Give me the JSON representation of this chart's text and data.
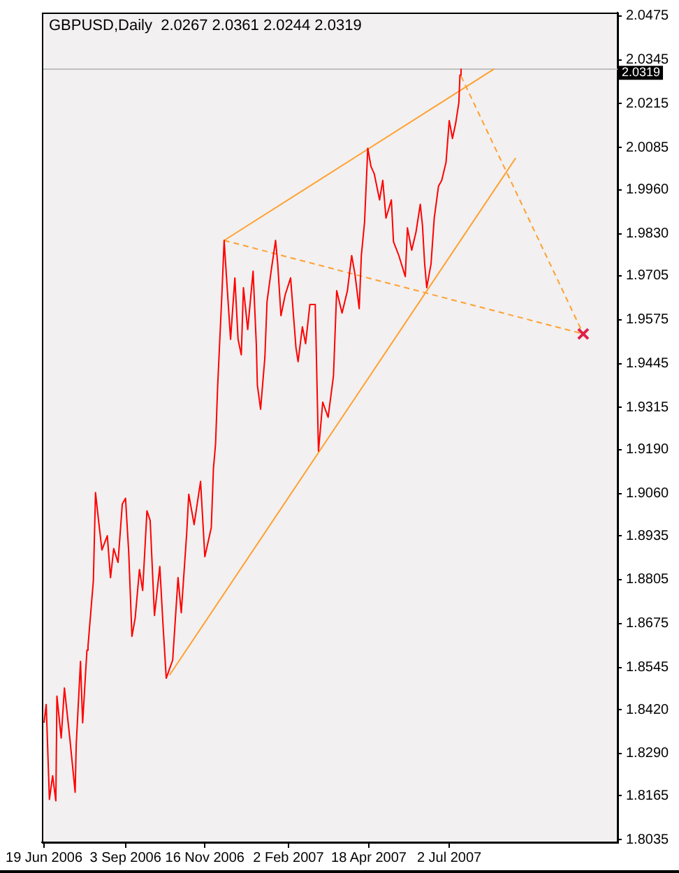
{
  "chart_data": {
    "type": "line",
    "title": "GBPUSD,Daily  2.0267 2.0361 2.0244 2.0319",
    "xlim": [
      "2006-06-17",
      "2007-12-06"
    ],
    "xticks": [
      {
        "value": "2006-06-19",
        "label": "19 Jun 2006"
      },
      {
        "value": "2006-09-03",
        "label": "3 Sep 2006"
      },
      {
        "value": "2006-11-16",
        "label": "16 Nov 2006"
      },
      {
        "value": "2007-02-02",
        "label": "2 Feb 2007"
      },
      {
        "value": "2007-04-18",
        "label": "18 Apr 2007"
      },
      {
        "value": "2007-07-02",
        "label": "2 Jul 2007"
      }
    ],
    "ylim": [
      1.8027,
      2.0485
    ],
    "yticks": [
      1.8035,
      1.8165,
      {
        "value": 1.829,
        "label": "1.8290"
      },
      {
        "value": 1.842,
        "label": "1.8420"
      },
      1.8545,
      1.8675,
      1.8805,
      1.8935,
      {
        "value": 1.906,
        "label": "1.9060"
      },
      {
        "value": 1.919,
        "label": "1.9190"
      },
      1.9315,
      1.9445,
      1.9575,
      1.9705,
      {
        "value": 1.983,
        "label": "1.9830"
      },
      {
        "value": 1.996,
        "label": "1.9960"
      },
      2.0085,
      2.0215,
      2.0345,
      2.0475
    ],
    "grid": false,
    "legend": false,
    "ref_lines": [
      {
        "axis": "y",
        "value": 2.0319,
        "label": "2.0319",
        "color": "#c0c0c0"
      }
    ],
    "series": [
      {
        "color": "#ff0000",
        "marker": "none",
        "line_style": "solid",
        "x": [
          "2006-06-19",
          "2006-06-21",
          "2006-06-24",
          "2006-06-27",
          "2006-06-30",
          "2006-07-01",
          "2006-07-05",
          "2006-07-08",
          "2006-07-13",
          "2006-07-18",
          "2006-07-19",
          "2006-07-23",
          "2006-07-25",
          "2006-07-29",
          "2006-07-30",
          "2006-08-04",
          "2006-08-06",
          "2006-08-09",
          "2006-08-12",
          "2006-08-17",
          "2006-08-20",
          "2006-08-23",
          "2006-08-27",
          "2006-08-31",
          "2006-09-03",
          "2006-09-06",
          "2006-09-09",
          "2006-09-12",
          "2006-09-16",
          "2006-09-19",
          "2006-09-23",
          "2006-09-26",
          "2006-09-30",
          "2006-10-05",
          "2006-10-08",
          "2006-10-11",
          "2006-10-17",
          "2006-10-22",
          "2006-10-25",
          "2006-10-30",
          "2006-11-01",
          "2006-11-06",
          "2006-11-12",
          "2006-11-16",
          "2006-11-22",
          "2006-11-24",
          "2006-11-26",
          "2006-11-28",
          "2006-12-02",
          "2006-12-04",
          "2006-12-06",
          "2006-12-10",
          "2006-12-14",
          "2006-12-17",
          "2006-12-20",
          "2006-12-22",
          "2006-12-26",
          "2006-12-31",
          "2007-01-03",
          "2007-01-04",
          "2007-01-07",
          "2007-01-11",
          "2007-01-13",
          "2007-01-17",
          "2007-01-21",
          "2007-01-23",
          "2007-01-26",
          "2007-01-30",
          "2007-02-04",
          "2007-02-09",
          "2007-02-11",
          "2007-02-15",
          "2007-02-18",
          "2007-02-22",
          "2007-02-27",
          "2007-03-02",
          "2007-03-06",
          "2007-03-11",
          "2007-03-16",
          "2007-03-19",
          "2007-03-24",
          "2007-03-29",
          "2007-04-02",
          "2007-04-05",
          "2007-04-09",
          "2007-04-11",
          "2007-04-14",
          "2007-04-17",
          "2007-04-20",
          "2007-04-23",
          "2007-04-28",
          "2007-05-01",
          "2007-05-04",
          "2007-05-09",
          "2007-05-11",
          "2007-05-16",
          "2007-05-22",
          "2007-05-24",
          "2007-05-28",
          "2007-06-01",
          "2007-06-05",
          "2007-06-07",
          "2007-06-09",
          "2007-06-11",
          "2007-06-15",
          "2007-06-18",
          "2007-06-22",
          "2007-06-25",
          "2007-06-29",
          "2007-07-02",
          "2007-07-05",
          "2007-07-08",
          "2007-07-11",
          "2007-07-12",
          "2007-07-13"
        ],
        "values": [
          1.8381,
          1.8435,
          1.8154,
          1.8224,
          1.815,
          1.846,
          1.8336,
          1.8484,
          1.8336,
          1.8175,
          1.8315,
          1.8563,
          1.8381,
          1.8596,
          1.8608,
          1.8802,
          1.9063,
          1.8976,
          1.8893,
          1.8935,
          1.8811,
          1.8897,
          1.8856,
          1.9029,
          1.9046,
          1.8885,
          1.8637,
          1.8691,
          1.8835,
          1.8773,
          1.9009,
          1.898,
          1.8699,
          1.8844,
          1.867,
          1.8513,
          1.8567,
          1.8811,
          1.8707,
          1.8939,
          1.9058,
          1.8968,
          1.9096,
          1.8873,
          1.8959,
          1.9133,
          1.9207,
          1.9381,
          1.9657,
          1.981,
          1.9711,
          1.9517,
          1.9699,
          1.9517,
          1.9471,
          1.967,
          1.9546,
          1.9719,
          1.9504,
          1.9381,
          1.931,
          1.9463,
          1.9628,
          1.9723,
          1.981,
          1.974,
          1.9587,
          1.9649,
          1.9699,
          1.9492,
          1.9451,
          1.9554,
          1.9504,
          1.962,
          1.962,
          1.9186,
          1.9331,
          1.9286,
          1.9409,
          1.9661,
          1.9595,
          1.9661,
          1.9765,
          1.9711,
          1.9608,
          1.9765,
          1.9864,
          2.0083,
          2.0029,
          2.0008,
          1.993,
          1.9988,
          1.9876,
          1.993,
          1.9806,
          1.9765,
          1.9703,
          1.9847,
          1.9781,
          1.9835,
          1.9917,
          1.9855,
          1.9744,
          1.967,
          1.974,
          1.9876,
          1.9971,
          1.9988,
          2.0041,
          2.0165,
          2.0112,
          2.0157,
          2.0219,
          2.03,
          2.0319
        ]
      },
      {
        "color": "#ffa030",
        "marker": "none",
        "line_style": "solid",
        "x": [
          "2006-12-04",
          "2007-08-13"
        ],
        "values": [
          1.981,
          2.0318
        ]
      },
      {
        "color": "#ffa030",
        "marker": "none",
        "line_style": "solid",
        "x": [
          "2006-10-14",
          "2007-09-02"
        ],
        "values": [
          1.8522,
          2.0054
        ]
      },
      {
        "color": "#ffa030",
        "marker": "none",
        "line_style": "dashed",
        "x": [
          "2006-12-04",
          "2007-11-04"
        ],
        "values": [
          1.981,
          1.9533
        ]
      },
      {
        "color": "#ffa030",
        "marker": "none",
        "line_style": "dashed",
        "x": [
          "2007-07-13",
          "2007-11-04"
        ],
        "values": [
          2.0297,
          1.9533
        ]
      },
      {
        "type": "scatter",
        "color": "#e0204a",
        "marker": "cross",
        "x": [
          "2007-11-04"
        ],
        "values": [
          1.9533
        ]
      }
    ]
  }
}
